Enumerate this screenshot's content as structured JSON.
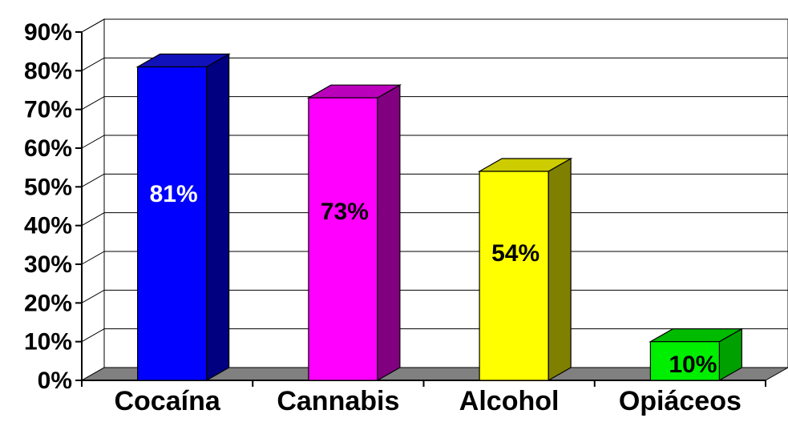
{
  "chart_data": {
    "type": "bar",
    "categories": [
      "Cocaína",
      "Cannabis",
      "Alcohol",
      "Opiáceos"
    ],
    "values": [
      81,
      73,
      54,
      10
    ],
    "data_labels": [
      "81%",
      "73%",
      "54%",
      "10%"
    ],
    "ylim": [
      0,
      90
    ],
    "yticks": [
      "0%",
      "10%",
      "20%",
      "30%",
      "40%",
      "50%",
      "60%",
      "70%",
      "80%",
      "90%"
    ],
    "grid": true,
    "legend": "none",
    "three_d": true,
    "colors": {
      "bars": [
        "#0000FF",
        "#FF00FF",
        "#FFFF00",
        "#00EE00"
      ],
      "bar_sides": [
        "#000080",
        "#800080",
        "#808000",
        "#00A000"
      ],
      "bar_tops": [
        "#1212BB",
        "#BB00BB",
        "#CCCC00",
        "#00BB00"
      ],
      "label_colors": [
        "#FFFFFF",
        "#000000",
        "#000000",
        "#000000"
      ],
      "floor": "#808080",
      "gridline": "#000000"
    }
  }
}
